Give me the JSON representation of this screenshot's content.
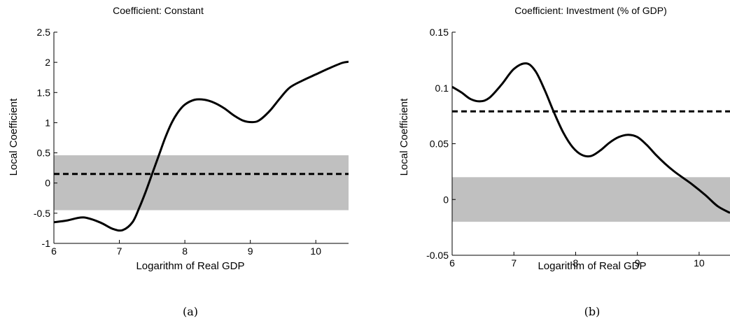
{
  "chart_data": [
    {
      "type": "line",
      "title": "Coefficient: Constant",
      "xlabel": "Logarithm of Real GDP",
      "ylabel": "Local Coefficient",
      "caption": "(a)",
      "xlim": [
        6,
        10.5
      ],
      "ylim": [
        -1,
        2.5
      ],
      "xticks": [
        6,
        7,
        8,
        9,
        10
      ],
      "yticks": [
        -1,
        -0.5,
        0,
        0.5,
        1,
        1.5,
        2,
        2.5
      ],
      "grid": false,
      "band": {
        "low": -0.45,
        "high": 0.46,
        "color": "#c0c0c0"
      },
      "reference_line": {
        "y": 0.15,
        "style": "dashed"
      },
      "series": [
        {
          "x": [
            6.0,
            6.2,
            6.45,
            6.7,
            6.9,
            7.05,
            7.2,
            7.3,
            7.4,
            7.5,
            7.6,
            7.7,
            7.8,
            7.9,
            8.0,
            8.15,
            8.3,
            8.45,
            8.6,
            8.75,
            8.9,
            9.05,
            9.15,
            9.3,
            9.45,
            9.6,
            9.8,
            10.0,
            10.2,
            10.4,
            10.5
          ],
          "y": [
            -0.65,
            -0.62,
            -0.57,
            -0.65,
            -0.76,
            -0.78,
            -0.65,
            -0.42,
            -0.15,
            0.15,
            0.45,
            0.75,
            1.0,
            1.18,
            1.3,
            1.38,
            1.38,
            1.33,
            1.24,
            1.12,
            1.03,
            1.01,
            1.05,
            1.2,
            1.4,
            1.58,
            1.7,
            1.8,
            1.9,
            1.99,
            2.01
          ]
        }
      ]
    },
    {
      "type": "line",
      "title": "Coefficient: Investment (% of GDP)",
      "xlabel": "Logarithm of Real GDP",
      "ylabel": "Local Coefficient",
      "caption": "(b)",
      "xlim": [
        6,
        10.5
      ],
      "ylim": [
        -0.05,
        0.15
      ],
      "xticks": [
        6,
        7,
        8,
        9,
        10
      ],
      "yticks": [
        -0.05,
        0,
        0.05,
        0.1,
        0.15
      ],
      "grid": false,
      "band": {
        "low": -0.02,
        "high": 0.02,
        "color": "#c0c0c0"
      },
      "reference_line": {
        "y": 0.079,
        "style": "dashed"
      },
      "series": [
        {
          "x": [
            6.0,
            6.15,
            6.3,
            6.45,
            6.6,
            6.8,
            7.0,
            7.2,
            7.35,
            7.5,
            7.65,
            7.8,
            7.95,
            8.1,
            8.25,
            8.4,
            8.55,
            8.7,
            8.85,
            9.0,
            9.15,
            9.3,
            9.45,
            9.6,
            9.75,
            9.9,
            10.1,
            10.3,
            10.5
          ],
          "y": [
            0.101,
            0.096,
            0.09,
            0.088,
            0.091,
            0.103,
            0.117,
            0.122,
            0.115,
            0.098,
            0.078,
            0.06,
            0.047,
            0.04,
            0.039,
            0.044,
            0.051,
            0.056,
            0.058,
            0.056,
            0.049,
            0.04,
            0.032,
            0.025,
            0.019,
            0.013,
            0.004,
            -0.006,
            -0.012
          ]
        }
      ]
    }
  ]
}
